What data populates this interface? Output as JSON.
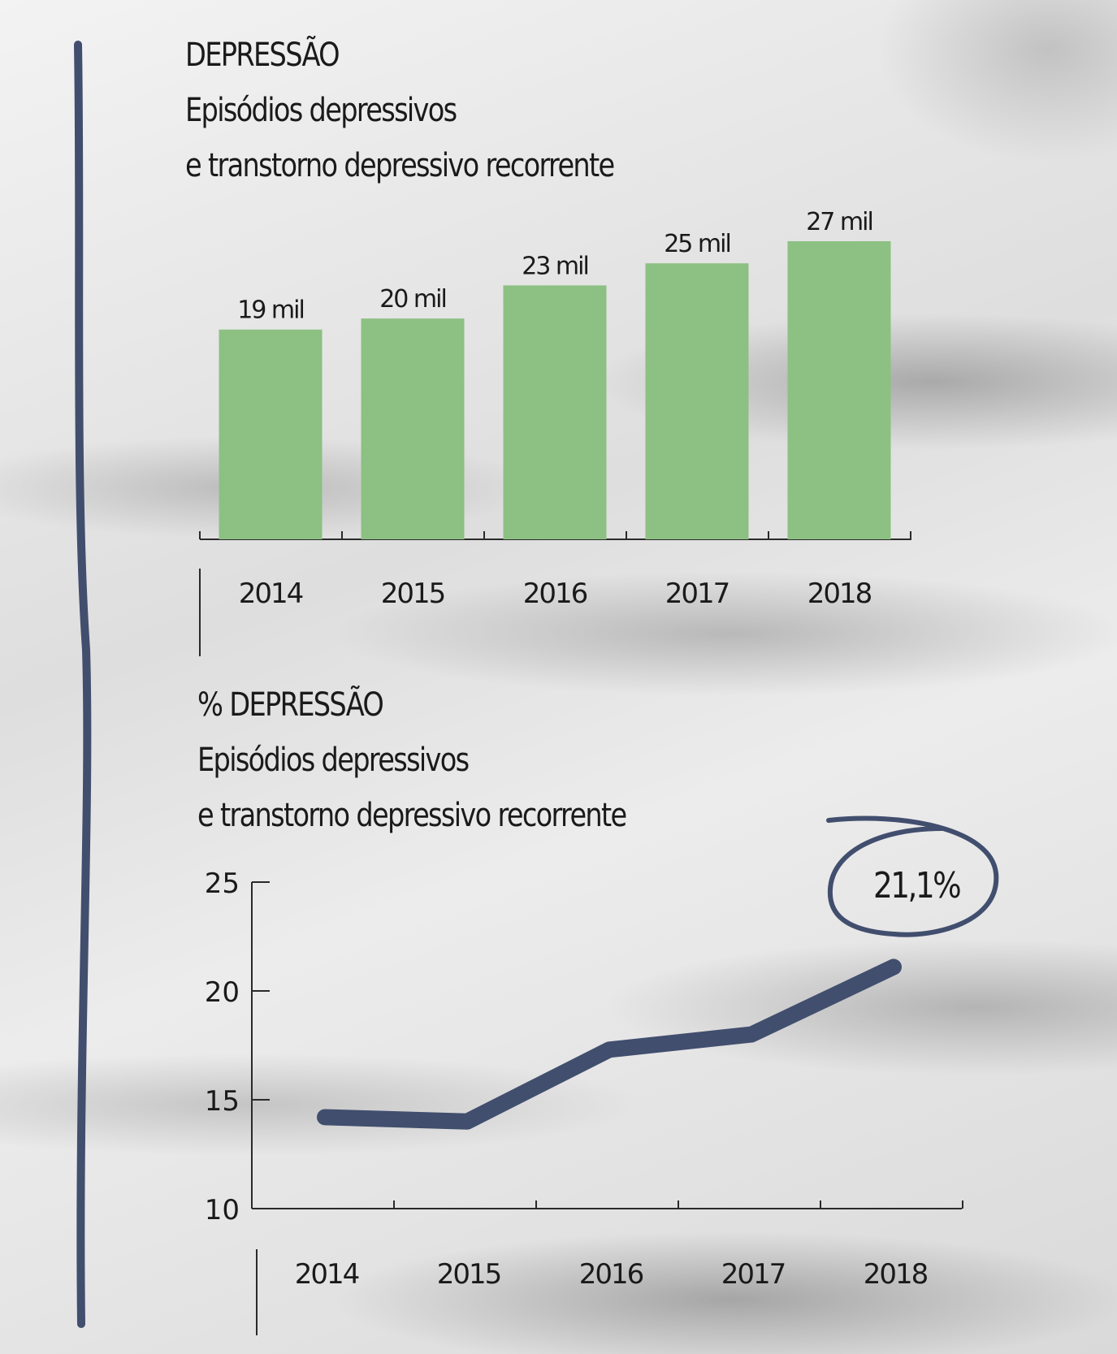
{
  "colors": {
    "bar": "#8dc083",
    "line": "#414e6e",
    "rule": "#414e6e",
    "text": "#1a1a1a"
  },
  "chart_data": [
    {
      "type": "bar",
      "title": "DEPRESSÃO",
      "subtitle_line1": "Episódios depressivos",
      "subtitle_line2": "e transtorno depressivo recorrente",
      "categories": [
        "2014",
        "2015",
        "2016",
        "2017",
        "2018"
      ],
      "values": [
        19000,
        20000,
        23000,
        25000,
        27000
      ],
      "data_labels": [
        "19 mil",
        "20 mil",
        "23 mil",
        "25 mil",
        "27 mil"
      ],
      "ylim": [
        0,
        27000
      ],
      "grid": false
    },
    {
      "type": "line",
      "title": "% DEPRESSÃO",
      "subtitle_line1": "Episódios depressivos",
      "subtitle_line2": "e transtorno depressivo recorrente",
      "x": [
        "2014",
        "2015",
        "2016",
        "2017",
        "2018"
      ],
      "values": [
        14.2,
        14.0,
        17.3,
        18.0,
        21.1
      ],
      "ylim": [
        10,
        25
      ],
      "yticks": [
        10,
        15,
        20,
        25
      ],
      "annotation": "21,1%",
      "grid": false
    }
  ]
}
